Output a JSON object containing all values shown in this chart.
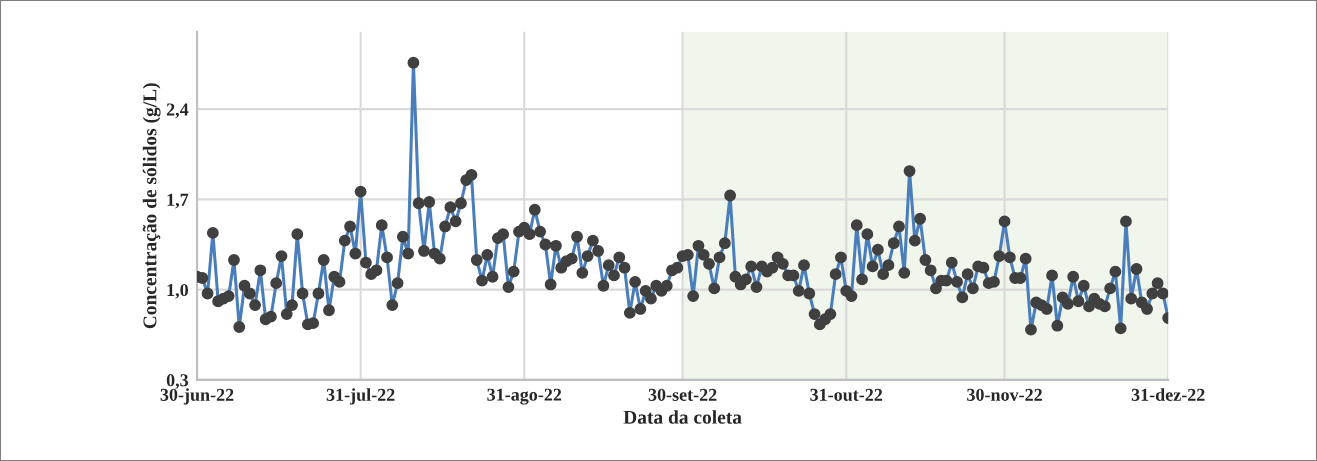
{
  "chart_data": {
    "type": "line",
    "xlabel": "Data da coleta",
    "ylabel": "Concentração de sólidos (g/L)",
    "x": [
      "2022-06-30",
      "2022-07-01",
      "2022-07-02",
      "2022-07-03",
      "2022-07-04",
      "2022-07-05",
      "2022-07-06",
      "2022-07-07",
      "2022-07-08",
      "2022-07-09",
      "2022-07-10",
      "2022-07-11",
      "2022-07-12",
      "2022-07-13",
      "2022-07-14",
      "2022-07-15",
      "2022-07-16",
      "2022-07-17",
      "2022-07-18",
      "2022-07-19",
      "2022-07-20",
      "2022-07-21",
      "2022-07-22",
      "2022-07-23",
      "2022-07-24",
      "2022-07-25",
      "2022-07-26",
      "2022-07-27",
      "2022-07-28",
      "2022-07-29",
      "2022-07-30",
      "2022-07-31",
      "2022-08-01",
      "2022-08-02",
      "2022-08-03",
      "2022-08-04",
      "2022-08-05",
      "2022-08-06",
      "2022-08-07",
      "2022-08-08",
      "2022-08-09",
      "2022-08-10",
      "2022-08-11",
      "2022-08-12",
      "2022-08-13",
      "2022-08-14",
      "2022-08-15",
      "2022-08-16",
      "2022-08-17",
      "2022-08-18",
      "2022-08-19",
      "2022-08-20",
      "2022-08-21",
      "2022-08-22",
      "2022-08-23",
      "2022-08-24",
      "2022-08-25",
      "2022-08-26",
      "2022-08-27",
      "2022-08-28",
      "2022-08-29",
      "2022-08-30",
      "2022-08-31",
      "2022-09-01",
      "2022-09-02",
      "2022-09-03",
      "2022-09-04",
      "2022-09-05",
      "2022-09-06",
      "2022-09-07",
      "2022-09-08",
      "2022-09-09",
      "2022-09-10",
      "2022-09-11",
      "2022-09-12",
      "2022-09-13",
      "2022-09-14",
      "2022-09-15",
      "2022-09-16",
      "2022-09-17",
      "2022-09-18",
      "2022-09-19",
      "2022-09-20",
      "2022-09-21",
      "2022-09-22",
      "2022-09-23",
      "2022-09-24",
      "2022-09-25",
      "2022-09-26",
      "2022-09-27",
      "2022-09-28",
      "2022-09-29",
      "2022-09-30",
      "2022-10-01",
      "2022-10-02",
      "2022-10-03",
      "2022-10-04",
      "2022-10-05",
      "2022-10-06",
      "2022-10-07",
      "2022-10-08",
      "2022-10-09",
      "2022-10-10",
      "2022-10-11",
      "2022-10-12",
      "2022-10-13",
      "2022-10-14",
      "2022-10-15",
      "2022-10-16",
      "2022-10-17",
      "2022-10-18",
      "2022-10-19",
      "2022-10-20",
      "2022-10-21",
      "2022-10-22",
      "2022-10-23",
      "2022-10-24",
      "2022-10-25",
      "2022-10-26",
      "2022-10-27",
      "2022-10-28",
      "2022-10-29",
      "2022-10-30",
      "2022-10-31",
      "2022-11-01",
      "2022-11-02",
      "2022-11-03",
      "2022-11-04",
      "2022-11-05",
      "2022-11-06",
      "2022-11-07",
      "2022-11-08",
      "2022-11-09",
      "2022-11-10",
      "2022-11-11",
      "2022-11-12",
      "2022-11-13",
      "2022-11-14",
      "2022-11-15",
      "2022-11-16",
      "2022-11-17",
      "2022-11-18",
      "2022-11-19",
      "2022-11-20",
      "2022-11-21",
      "2022-11-22",
      "2022-11-23",
      "2022-11-24",
      "2022-11-25",
      "2022-11-26",
      "2022-11-27",
      "2022-11-28",
      "2022-11-29",
      "2022-11-30",
      "2022-12-01",
      "2022-12-02",
      "2022-12-03",
      "2022-12-04",
      "2022-12-05",
      "2022-12-06",
      "2022-12-07",
      "2022-12-08",
      "2022-12-09",
      "2022-12-10",
      "2022-12-11",
      "2022-12-12",
      "2022-12-13",
      "2022-12-14",
      "2022-12-15",
      "2022-12-16",
      "2022-12-17",
      "2022-12-18",
      "2022-12-19",
      "2022-12-20",
      "2022-12-21",
      "2022-12-22",
      "2022-12-23",
      "2022-12-24",
      "2022-12-25",
      "2022-12-26",
      "2022-12-27",
      "2022-12-28",
      "2022-12-29",
      "2022-12-30",
      "2022-12-31"
    ],
    "series": [
      {
        "color": "#4a7ebb",
        "values": [
          1.1,
          1.09,
          0.97,
          1.44,
          0.91,
          0.93,
          0.95,
          1.23,
          0.71,
          1.03,
          0.97,
          0.88,
          1.15,
          0.77,
          0.79,
          1.05,
          1.26,
          0.81,
          0.88,
          1.43,
          0.97,
          0.73,
          0.74,
          0.97,
          1.23,
          0.84,
          1.1,
          1.06,
          1.38,
          1.49,
          1.28,
          1.76,
          1.21,
          1.12,
          1.15,
          1.5,
          1.25,
          0.88,
          1.05,
          1.41,
          1.28,
          2.76,
          1.67,
          1.3,
          1.68,
          1.28,
          1.24,
          1.49,
          1.64,
          1.53,
          1.67,
          1.85,
          1.89,
          1.23,
          1.07,
          1.27,
          1.1,
          1.4,
          1.43,
          1.02,
          1.14,
          1.45,
          1.48,
          1.43,
          1.62,
          1.45,
          1.35,
          1.04,
          1.34,
          1.17,
          1.22,
          1.24,
          1.41,
          1.13,
          1.26,
          1.38,
          1.3,
          1.03,
          1.19,
          1.11,
          1.25,
          1.17,
          0.82,
          1.06,
          0.85,
          0.99,
          0.93,
          1.03,
          0.99,
          1.03,
          1.15,
          1.17,
          1.26,
          1.27,
          0.95,
          1.34,
          1.27,
          1.2,
          1.01,
          1.25,
          1.36,
          1.73,
          1.1,
          1.04,
          1.08,
          1.18,
          1.02,
          1.18,
          1.14,
          1.17,
          1.25,
          1.2,
          1.11,
          1.11,
          0.99,
          1.19,
          0.97,
          0.81,
          0.73,
          0.77,
          0.81,
          1.12,
          1.25,
          0.99,
          0.95,
          1.5,
          1.08,
          1.43,
          1.18,
          1.31,
          1.12,
          1.19,
          1.36,
          1.49,
          1.13,
          1.92,
          1.38,
          1.55,
          1.23,
          1.15,
          1.01,
          1.07,
          1.07,
          1.21,
          1.06,
          0.94,
          1.12,
          1.01,
          1.18,
          1.17,
          1.05,
          1.06,
          1.26,
          1.53,
          1.25,
          1.09,
          1.09,
          1.24,
          0.69,
          0.9,
          0.88,
          0.85,
          1.11,
          0.72,
          0.94,
          0.89,
          1.1,
          0.91,
          1.03,
          0.87,
          0.93,
          0.89,
          0.87,
          1.01,
          1.14,
          0.7,
          1.53,
          0.93,
          1.16,
          0.9,
          0.85,
          0.97,
          1.05,
          0.97,
          0.78
        ]
      }
    ],
    "xlim": [
      "2022-06-30",
      "2022-12-31"
    ],
    "xticks": [
      {
        "value": "2022-06-30",
        "label": "30-jun-22"
      },
      {
        "value": "2022-07-31",
        "label": "31-jul-22"
      },
      {
        "value": "2022-08-31",
        "label": "31-ago-22"
      },
      {
        "value": "2022-09-30",
        "label": "30-set-22"
      },
      {
        "value": "2022-10-31",
        "label": "31-out-22"
      },
      {
        "value": "2022-11-30",
        "label": "30-nov-22"
      },
      {
        "value": "2022-12-31",
        "label": "31-dez-22"
      }
    ],
    "ylim": [
      0.3,
      3.0
    ],
    "yticks": [
      {
        "value": 0.3,
        "label": "0,3"
      },
      {
        "value": 1.0,
        "label": "1,0"
      },
      {
        "value": 1.7,
        "label": "1,7"
      },
      {
        "value": 2.4,
        "label": "2,4"
      }
    ],
    "bands": [
      {
        "axis": "x",
        "from": "2022-09-30",
        "to": "2022-12-31",
        "color": "#f1f6ec"
      }
    ],
    "grid": true,
    "marker": "circle",
    "line_style": "solid",
    "legend": false
  }
}
